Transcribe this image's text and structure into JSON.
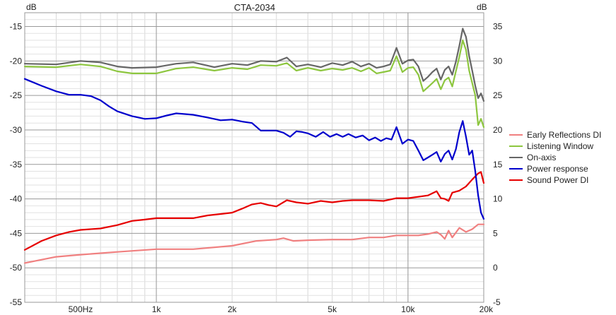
{
  "chart_data": {
    "type": "line",
    "title": "CTA-2034",
    "x_scale": "log",
    "xlim": [
      300,
      20000
    ],
    "x_ticks": [
      {
        "value": 500,
        "label": "500Hz"
      },
      {
        "value": 1000,
        "label": "1k"
      },
      {
        "value": 2000,
        "label": "2k"
      },
      {
        "value": 5000,
        "label": "5k"
      },
      {
        "value": 10000,
        "label": "10k"
      },
      {
        "value": 20000,
        "label": "20k"
      }
    ],
    "y_left": {
      "label": "dB",
      "lim": [
        -55,
        -13
      ],
      "ticks": [
        -15,
        -20,
        -25,
        -30,
        -35,
        -40,
        -45,
        -50,
        -55
      ]
    },
    "y_right": {
      "label": "dB",
      "lim": [
        -5,
        37
      ],
      "ticks": [
        35,
        30,
        25,
        20,
        15,
        10,
        5,
        0,
        -5
      ]
    },
    "grid": true,
    "legend_position": "right",
    "series": [
      {
        "name": "Early Reflections DI",
        "color": "#f08080",
        "axis": "right",
        "points": [
          [
            300,
            0.7
          ],
          [
            400,
            1.6
          ],
          [
            500,
            1.9
          ],
          [
            700,
            2.3
          ],
          [
            1000,
            2.7
          ],
          [
            1400,
            2.7
          ],
          [
            2000,
            3.2
          ],
          [
            2500,
            3.9
          ],
          [
            3000,
            4.1
          ],
          [
            3200,
            4.3
          ],
          [
            3500,
            3.9
          ],
          [
            4000,
            4.0
          ],
          [
            5000,
            4.1
          ],
          [
            6000,
            4.1
          ],
          [
            7000,
            4.4
          ],
          [
            8000,
            4.4
          ],
          [
            9000,
            4.7
          ],
          [
            10000,
            4.7
          ],
          [
            11000,
            4.7
          ],
          [
            12000,
            4.9
          ],
          [
            13000,
            5.2
          ],
          [
            13500,
            4.8
          ],
          [
            14000,
            4.2
          ],
          [
            14500,
            5.4
          ],
          [
            15000,
            4.4
          ],
          [
            16000,
            5.8
          ],
          [
            17000,
            5.2
          ],
          [
            18000,
            5.6
          ],
          [
            19000,
            6.3
          ],
          [
            20000,
            6.3
          ]
        ]
      },
      {
        "name": "Listening Window",
        "color": "#8dc63f",
        "axis": "left",
        "points": [
          [
            300,
            -20.8
          ],
          [
            400,
            -20.9
          ],
          [
            500,
            -20.5
          ],
          [
            600,
            -20.8
          ],
          [
            700,
            -21.5
          ],
          [
            800,
            -21.8
          ],
          [
            1000,
            -21.8
          ],
          [
            1200,
            -21.1
          ],
          [
            1400,
            -20.9
          ],
          [
            1700,
            -21.4
          ],
          [
            2000,
            -21.0
          ],
          [
            2300,
            -21.2
          ],
          [
            2600,
            -20.6
          ],
          [
            3000,
            -20.7
          ],
          [
            3300,
            -20.3
          ],
          [
            3600,
            -21.4
          ],
          [
            4000,
            -21.0
          ],
          [
            4500,
            -21.4
          ],
          [
            5000,
            -21.1
          ],
          [
            5500,
            -21.3
          ],
          [
            6000,
            -21.0
          ],
          [
            6500,
            -21.5
          ],
          [
            7000,
            -21.0
          ],
          [
            7500,
            -21.8
          ],
          [
            8000,
            -21.6
          ],
          [
            8500,
            -21.4
          ],
          [
            9000,
            -19.3
          ],
          [
            9500,
            -21.6
          ],
          [
            10000,
            -21.0
          ],
          [
            10500,
            -20.9
          ],
          [
            11000,
            -22.0
          ],
          [
            11500,
            -24.4
          ],
          [
            12000,
            -23.8
          ],
          [
            12500,
            -23.2
          ],
          [
            13000,
            -22.6
          ],
          [
            13500,
            -24.1
          ],
          [
            14000,
            -22.8
          ],
          [
            14500,
            -22.4
          ],
          [
            15000,
            -23.7
          ],
          [
            15500,
            -21.5
          ],
          [
            16000,
            -19.4
          ],
          [
            16500,
            -17.0
          ],
          [
            17000,
            -18.4
          ],
          [
            17500,
            -21.4
          ],
          [
            18000,
            -23.2
          ],
          [
            18500,
            -25.0
          ],
          [
            19000,
            -29.3
          ],
          [
            19500,
            -28.4
          ],
          [
            20000,
            -29.6
          ]
        ]
      },
      {
        "name": "On-axis",
        "color": "#666666",
        "axis": "left",
        "points": [
          [
            300,
            -20.4
          ],
          [
            400,
            -20.5
          ],
          [
            500,
            -20.0
          ],
          [
            600,
            -20.2
          ],
          [
            700,
            -20.8
          ],
          [
            800,
            -21.0
          ],
          [
            1000,
            -20.9
          ],
          [
            1200,
            -20.4
          ],
          [
            1400,
            -20.2
          ],
          [
            1700,
            -20.9
          ],
          [
            2000,
            -20.4
          ],
          [
            2300,
            -20.6
          ],
          [
            2600,
            -20.0
          ],
          [
            3000,
            -20.1
          ],
          [
            3300,
            -19.5
          ],
          [
            3600,
            -20.8
          ],
          [
            4000,
            -20.5
          ],
          [
            4500,
            -20.9
          ],
          [
            5000,
            -20.3
          ],
          [
            5500,
            -20.6
          ],
          [
            6000,
            -20.1
          ],
          [
            6500,
            -20.8
          ],
          [
            7000,
            -20.4
          ],
          [
            7500,
            -21.0
          ],
          [
            8000,
            -20.8
          ],
          [
            8500,
            -20.5
          ],
          [
            9000,
            -18.1
          ],
          [
            9500,
            -20.4
          ],
          [
            10000,
            -19.9
          ],
          [
            10500,
            -19.8
          ],
          [
            11000,
            -20.8
          ],
          [
            11500,
            -22.9
          ],
          [
            12000,
            -22.3
          ],
          [
            12500,
            -21.6
          ],
          [
            13000,
            -21.1
          ],
          [
            13500,
            -22.7
          ],
          [
            14000,
            -21.3
          ],
          [
            14500,
            -20.8
          ],
          [
            15000,
            -22.0
          ],
          [
            15500,
            -20.1
          ],
          [
            16000,
            -17.8
          ],
          [
            16500,
            -15.3
          ],
          [
            17000,
            -16.5
          ],
          [
            17500,
            -19.3
          ],
          [
            18000,
            -21.4
          ],
          [
            18500,
            -23.6
          ],
          [
            19000,
            -25.4
          ],
          [
            19500,
            -24.7
          ],
          [
            20000,
            -25.8
          ]
        ]
      },
      {
        "name": "Power response",
        "color": "#0000cc",
        "axis": "left",
        "points": [
          [
            300,
            -22.6
          ],
          [
            350,
            -23.6
          ],
          [
            400,
            -24.4
          ],
          [
            450,
            -24.9
          ],
          [
            500,
            -24.9
          ],
          [
            550,
            -25.1
          ],
          [
            600,
            -25.7
          ],
          [
            650,
            -26.6
          ],
          [
            700,
            -27.3
          ],
          [
            800,
            -28.0
          ],
          [
            900,
            -28.4
          ],
          [
            1000,
            -28.3
          ],
          [
            1100,
            -27.9
          ],
          [
            1200,
            -27.6
          ],
          [
            1400,
            -27.8
          ],
          [
            1600,
            -28.2
          ],
          [
            1800,
            -28.6
          ],
          [
            2000,
            -28.5
          ],
          [
            2200,
            -28.8
          ],
          [
            2400,
            -29.0
          ],
          [
            2600,
            -30.1
          ],
          [
            2800,
            -30.1
          ],
          [
            3000,
            -30.1
          ],
          [
            3200,
            -30.4
          ],
          [
            3400,
            -31.0
          ],
          [
            3600,
            -30.2
          ],
          [
            3800,
            -30.3
          ],
          [
            4000,
            -30.5
          ],
          [
            4300,
            -31.0
          ],
          [
            4600,
            -30.3
          ],
          [
            4900,
            -31.0
          ],
          [
            5200,
            -30.6
          ],
          [
            5500,
            -31.0
          ],
          [
            5800,
            -30.6
          ],
          [
            6200,
            -31.1
          ],
          [
            6600,
            -30.8
          ],
          [
            7000,
            -31.5
          ],
          [
            7400,
            -31.1
          ],
          [
            7800,
            -31.6
          ],
          [
            8200,
            -31.2
          ],
          [
            8600,
            -31.4
          ],
          [
            9000,
            -29.6
          ],
          [
            9500,
            -32.0
          ],
          [
            10000,
            -31.4
          ],
          [
            10500,
            -31.6
          ],
          [
            11000,
            -33.0
          ],
          [
            11500,
            -34.4
          ],
          [
            12000,
            -34.0
          ],
          [
            12500,
            -33.6
          ],
          [
            13000,
            -33.2
          ],
          [
            13500,
            -34.6
          ],
          [
            14000,
            -33.5
          ],
          [
            14500,
            -33.0
          ],
          [
            15000,
            -34.3
          ],
          [
            15500,
            -32.8
          ],
          [
            16000,
            -30.3
          ],
          [
            16500,
            -28.7
          ],
          [
            17000,
            -31.0
          ],
          [
            17500,
            -33.6
          ],
          [
            18000,
            -33.0
          ],
          [
            18500,
            -36.0
          ],
          [
            19000,
            -39.5
          ],
          [
            19500,
            -42.0
          ],
          [
            20000,
            -42.9
          ]
        ]
      },
      {
        "name": "Sound Power DI",
        "color": "#e60000",
        "axis": "right",
        "points": [
          [
            300,
            2.6
          ],
          [
            350,
            3.9
          ],
          [
            400,
            4.7
          ],
          [
            450,
            5.2
          ],
          [
            500,
            5.5
          ],
          [
            600,
            5.7
          ],
          [
            700,
            6.2
          ],
          [
            800,
            6.8
          ],
          [
            900,
            7.0
          ],
          [
            1000,
            7.2
          ],
          [
            1200,
            7.2
          ],
          [
            1400,
            7.2
          ],
          [
            1600,
            7.6
          ],
          [
            1800,
            7.8
          ],
          [
            2000,
            8.0
          ],
          [
            2200,
            8.6
          ],
          [
            2400,
            9.2
          ],
          [
            2600,
            9.4
          ],
          [
            2800,
            9.1
          ],
          [
            3000,
            8.9
          ],
          [
            3300,
            9.8
          ],
          [
            3600,
            9.5
          ],
          [
            4000,
            9.3
          ],
          [
            4500,
            9.7
          ],
          [
            5000,
            9.5
          ],
          [
            5500,
            9.7
          ],
          [
            6000,
            9.8
          ],
          [
            7000,
            9.8
          ],
          [
            8000,
            9.7
          ],
          [
            9000,
            10.1
          ],
          [
            10000,
            10.1
          ],
          [
            11000,
            10.3
          ],
          [
            12000,
            10.5
          ],
          [
            13000,
            11.1
          ],
          [
            13500,
            10.1
          ],
          [
            14000,
            10.0
          ],
          [
            14500,
            9.7
          ],
          [
            15000,
            10.9
          ],
          [
            16000,
            11.2
          ],
          [
            17000,
            11.8
          ],
          [
            18000,
            12.8
          ],
          [
            19000,
            13.7
          ],
          [
            19500,
            13.9
          ],
          [
            20000,
            12.3
          ]
        ]
      }
    ]
  }
}
